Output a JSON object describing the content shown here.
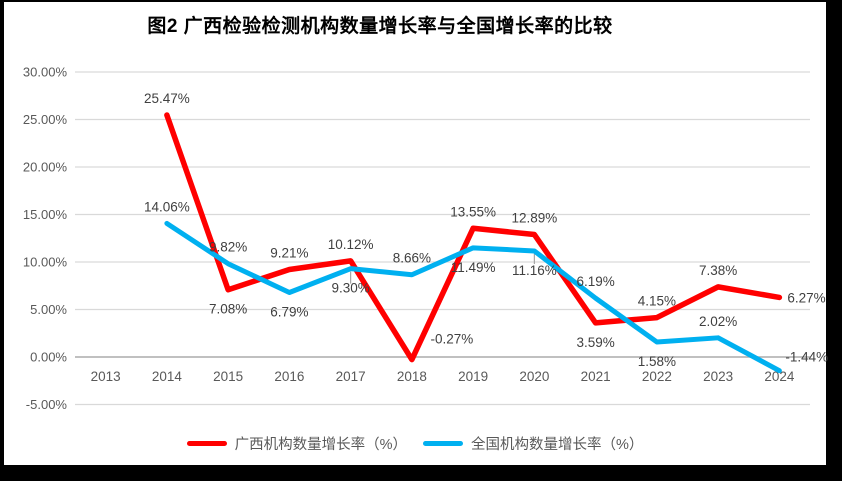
{
  "chart_data": {
    "type": "line",
    "title": "图2 广西检验检测机构数量增长率与全国增长率的比较",
    "categories": [
      "2013",
      "2014",
      "2015",
      "2016",
      "2017",
      "2018",
      "2019",
      "2020",
      "2021",
      "2022",
      "2023",
      "2024"
    ],
    "series": [
      {
        "name": "广西机构数量增长率（%）",
        "color": "#FF0000",
        "values": [
          null,
          25.47,
          7.08,
          9.21,
          10.12,
          -0.27,
          13.55,
          12.89,
          3.59,
          4.15,
          7.38,
          6.27
        ],
        "labels": [
          "",
          "25.47%",
          "7.08%",
          "9.21%",
          "10.12%",
          "-0.27%",
          "13.55%",
          "12.89%",
          "3.59%",
          "4.15%",
          "7.38%",
          "6.27%"
        ],
        "label_positions": [
          "",
          "above",
          "below",
          "above",
          "above",
          "above-right",
          "above",
          "above",
          "below",
          "above",
          "above",
          "right"
        ]
      },
      {
        "name": "全国机构数量增长率（%）",
        "color": "#00B0F0",
        "values": [
          null,
          14.06,
          9.82,
          6.79,
          9.3,
          8.66,
          11.49,
          11.16,
          6.19,
          1.58,
          2.02,
          -1.44
        ],
        "labels": [
          "",
          "14.06%",
          "9.82%",
          "6.79%",
          "9.30%",
          "8.66%",
          "11.49%",
          "11.16%",
          "6.19%",
          "1.58%",
          "2.02%",
          "-1.44%"
        ],
        "label_positions": [
          "",
          "above",
          "above",
          "below",
          "below",
          "above",
          "below",
          "below",
          "above",
          "below",
          "above",
          "right-above"
        ]
      }
    ],
    "y_axis": {
      "min": -5,
      "max": 30,
      "step": 5,
      "tick_values": [
        30,
        25,
        20,
        15,
        10,
        5,
        0,
        -5
      ],
      "tick_labels": [
        "30.00%",
        "25.00%",
        "20.00%",
        "15.00%",
        "10.00%",
        "5.00%",
        "0.00%",
        "-5.00%"
      ]
    },
    "grid": true,
    "legend_position": "bottom",
    "colors": {
      "gridline": "#D9D9D9",
      "zero_line": "#ABABAB",
      "axis_text": "#595959",
      "label_text": "#404040",
      "frame_border": "#000000",
      "background": "#FFFFFF"
    }
  }
}
